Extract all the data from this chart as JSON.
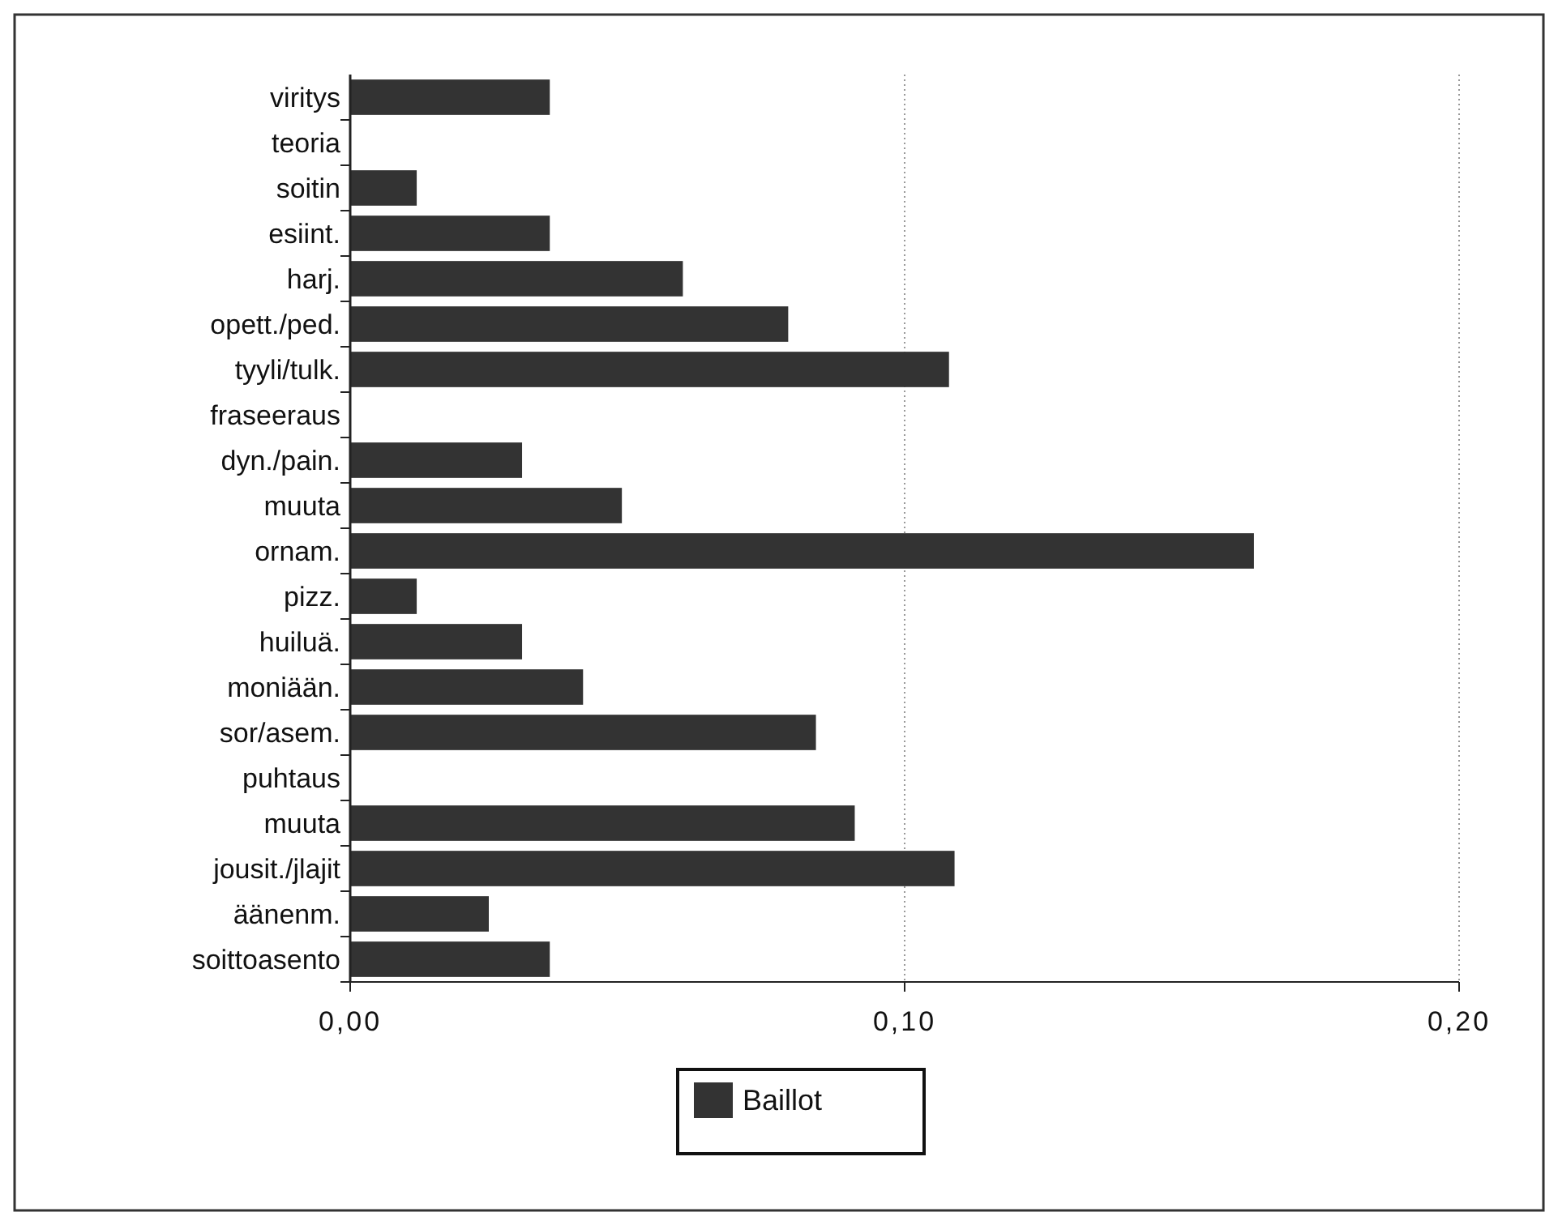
{
  "chart_data": {
    "type": "bar",
    "orientation": "horizontal",
    "categories": [
      "viritys",
      "teoria",
      "soitin",
      "esiint.",
      "harj.",
      "opett./ped.",
      "tyyli/tulk.",
      "fraseeraus",
      "dyn./pain.",
      "muuta",
      "ornam.",
      "pizz.",
      "huiluä.",
      "moniään.",
      "sor/asem.",
      "puhtaus",
      "muuta",
      "jousit./jlajit",
      "äänenm.",
      "soittoasento"
    ],
    "series": [
      {
        "name": "Baillot",
        "color": "#333333",
        "values": [
          0.036,
          0,
          0.012,
          0.036,
          0.06,
          0.079,
          0.108,
          0,
          0.031,
          0.049,
          0.163,
          0.012,
          0.031,
          0.042,
          0.084,
          0,
          0.091,
          0.109,
          0.025,
          0.036
        ]
      }
    ],
    "xlim": [
      0,
      0.2
    ],
    "xticks": [
      {
        "value": 0,
        "label": "0,00"
      },
      {
        "value": 0.1,
        "label": "0,10"
      },
      {
        "value": 0.2,
        "label": "0,20"
      }
    ],
    "grid": "x",
    "legend": "bottom"
  }
}
